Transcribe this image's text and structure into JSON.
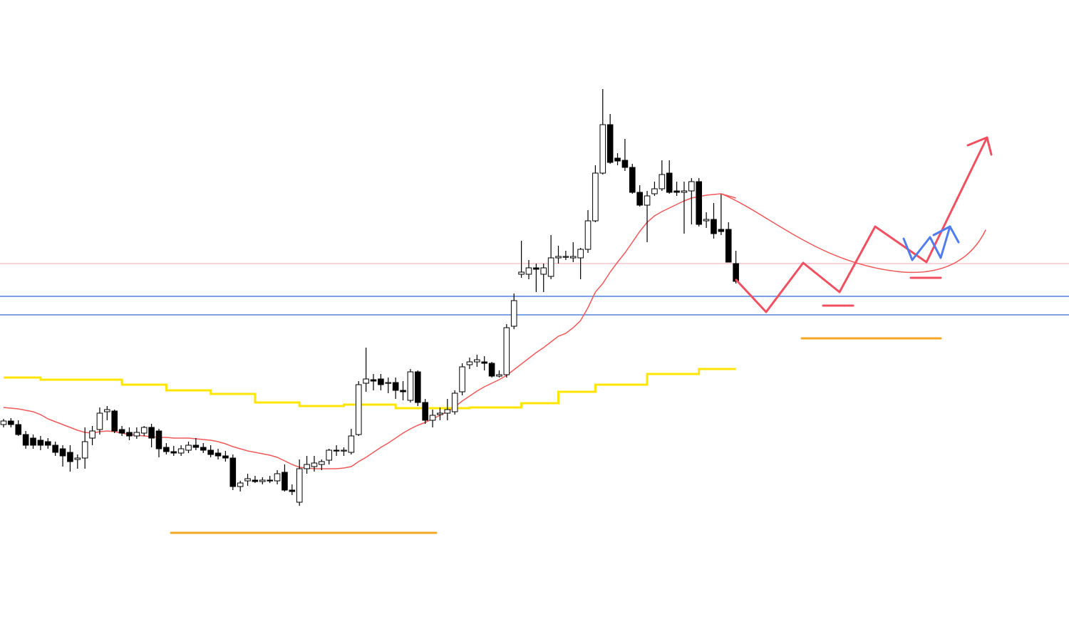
{
  "chart_data": {
    "type": "candlestick",
    "ylim": [
      117,
      1000
    ],
    "up_color": "#ffffff",
    "down_color": "#000000",
    "open": [
      404,
      409,
      404,
      390,
      385,
      382,
      380,
      375,
      370,
      365,
      355,
      357,
      385,
      397,
      422,
      423,
      397,
      393,
      388,
      392,
      400,
      395,
      372,
      366,
      364,
      368,
      375,
      372,
      368,
      364,
      360,
      357,
      317,
      325,
      326,
      324,
      326,
      325,
      337,
      312,
      295,
      342,
      345,
      348,
      354,
      368,
      367,
      365,
      390,
      462,
      467,
      468,
      462,
      463,
      452,
      438,
      478,
      435,
      410,
      418,
      420,
      422,
      450,
      488,
      492,
      492,
      490,
      472,
      474,
      542,
      615,
      615,
      624,
      615,
      612,
      638,
      640,
      638,
      638,
      650,
      690,
      757,
      825,
      778,
      775,
      765,
      730,
      712,
      728,
      735,
      757,
      732,
      730,
      732,
      745,
      690,
      692,
      678,
      678,
      630
    ],
    "high": [
      412,
      413,
      410,
      395,
      390,
      388,
      385,
      380,
      375,
      375,
      362,
      400,
      402,
      428,
      430,
      425,
      402,
      400,
      400,
      402,
      405,
      398,
      378,
      374,
      375,
      380,
      385,
      378,
      375,
      370,
      367,
      362,
      325,
      335,
      332,
      330,
      332,
      340,
      348,
      320,
      355,
      360,
      360,
      355,
      370,
      375,
      372,
      398,
      465,
      512,
      475,
      475,
      470,
      470,
      465,
      482,
      480,
      440,
      425,
      428,
      440,
      452,
      490,
      498,
      502,
      500,
      492,
      480,
      545,
      588,
      662,
      635,
      630,
      630,
      670,
      655,
      648,
      660,
      652,
      705,
      768,
      875,
      840,
      785,
      805,
      770,
      740,
      732,
      745,
      775,
      775,
      745,
      745,
      750,
      750,
      702,
      715,
      728,
      688,
      648
    ],
    "low": [
      400,
      400,
      388,
      370,
      370,
      368,
      370,
      360,
      345,
      338,
      342,
      342,
      375,
      390,
      410,
      392,
      388,
      382,
      384,
      388,
      372,
      358,
      362,
      360,
      360,
      364,
      368,
      364,
      358,
      355,
      352,
      312,
      310,
      318,
      322,
      320,
      322,
      320,
      310,
      305,
      290,
      335,
      338,
      340,
      348,
      360,
      360,
      362,
      388,
      450,
      452,
      452,
      448,
      440,
      438,
      435,
      430,
      405,
      400,
      410,
      410,
      418,
      445,
      482,
      485,
      480,
      470,
      470,
      470,
      538,
      610,
      608,
      590,
      590,
      608,
      630,
      635,
      632,
      608,
      645,
      688,
      755,
      770,
      768,
      760,
      728,
      710,
      660,
      725,
      732,
      728,
      725,
      672,
      685,
      682,
      680,
      665,
      670,
      632,
      602
    ],
    "close": [
      409,
      404,
      390,
      375,
      375,
      375,
      375,
      365,
      360,
      352,
      357,
      380,
      395,
      420,
      425,
      395,
      392,
      388,
      393,
      400,
      385,
      370,
      366,
      364,
      370,
      375,
      372,
      368,
      362,
      360,
      357,
      317,
      322,
      328,
      324,
      326,
      325,
      335,
      312,
      310,
      342,
      348,
      350,
      352,
      368,
      367,
      368,
      388,
      460,
      468,
      465,
      460,
      463,
      452,
      450,
      478,
      435,
      410,
      417,
      420,
      425,
      448,
      485,
      492,
      495,
      490,
      472,
      474,
      540,
      578,
      618,
      624,
      622,
      624,
      638,
      640,
      640,
      640,
      650,
      690,
      757,
      825,
      772,
      774,
      765,
      730,
      712,
      725,
      735,
      755,
      730,
      730,
      732,
      745,
      685,
      692,
      672,
      675,
      632,
      605
    ],
    "overlays": [
      {
        "color": "#f05a5a",
        "step": false,
        "values": [
          428,
          427,
          426,
          424,
          422,
          418,
          412,
          408,
          404,
          400,
          396,
          393,
          392,
          394,
          395,
          394,
          392,
          390,
          389,
          388,
          387,
          386,
          386,
          385,
          385,
          385,
          384,
          383,
          382,
          380,
          377,
          373,
          370,
          367,
          365,
          363,
          361,
          358,
          353,
          348,
          344,
          343,
          342,
          342,
          342,
          342,
          343,
          345,
          352,
          358,
          365,
          372,
          378,
          385,
          392,
          398,
          403,
          407,
          412,
          417,
          422,
          429,
          437,
          444,
          451,
          457,
          462,
          467,
          473,
          481,
          489,
          497,
          505,
          512,
          520,
          528,
          532,
          540,
          550,
          568,
          590,
          602,
          618,
          632,
          645,
          660,
          675,
          688,
          697,
          703,
          708,
          713,
          718,
          722,
          724,
          726,
          727,
          728,
          725,
          722
        ]
      },
      {
        "color": "#ffe600",
        "step": true,
        "values": [
          470,
          470,
          470,
          470,
          470,
          467,
          467,
          467,
          467,
          467,
          467,
          467,
          467,
          467,
          467,
          467,
          460,
          460,
          460,
          460,
          460,
          460,
          452,
          452,
          452,
          452,
          452,
          452,
          447,
          447,
          447,
          447,
          447,
          447,
          435,
          435,
          435,
          435,
          435,
          435,
          430,
          430,
          430,
          430,
          430,
          430,
          432,
          432,
          432,
          432,
          432,
          432,
          432,
          427,
          427,
          427,
          427,
          427,
          427,
          427,
          427,
          427,
          427,
          428,
          428,
          428,
          428,
          428,
          428,
          428,
          434,
          434,
          434,
          434,
          434,
          450,
          450,
          450,
          450,
          450,
          460,
          460,
          460,
          460,
          460,
          460,
          460,
          475,
          475,
          475,
          475,
          475,
          475,
          475,
          482,
          482,
          482,
          482,
          482,
          482
        ]
      }
    ],
    "hlines": [
      {
        "value": 630,
        "color": "#f4b6c2"
      },
      {
        "value": 584,
        "color": "#2f6bdc"
      },
      {
        "value": 558,
        "color": "#2f6bdc"
      }
    ]
  }
}
